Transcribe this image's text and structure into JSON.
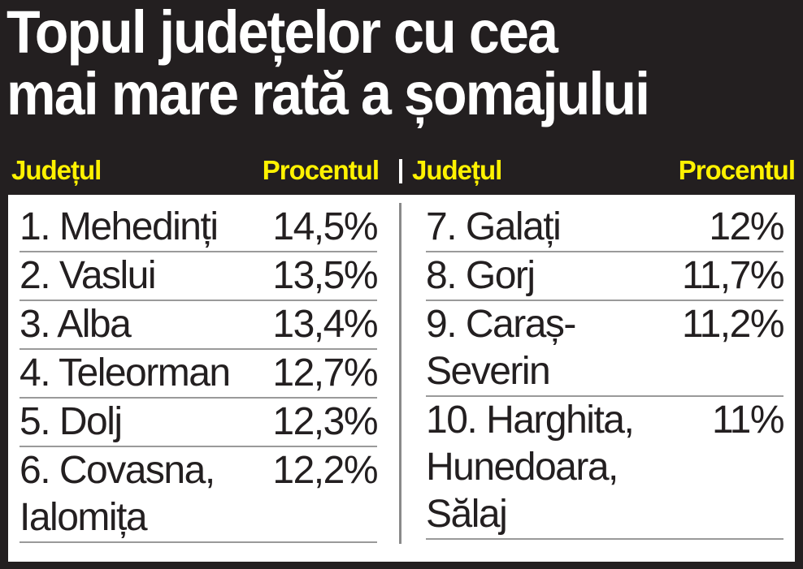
{
  "title": {
    "line1": "Topul județelor cu cea",
    "line2": "mai mare rată a șomajului"
  },
  "headers": {
    "left_county": "Județul",
    "left_percent": "Procentul",
    "separator": "|",
    "right_county": "Județul",
    "right_percent": "Procentul"
  },
  "colors": {
    "background": "#231f20",
    "header_text": "#fff200",
    "title_text": "#ffffff",
    "panel": "#ffffff",
    "row_rule": "#9a9a9a"
  },
  "chart_data": {
    "type": "table",
    "title": "Topul județelor cu cea mai mare rată a șomajului",
    "columns": [
      "Județul",
      "Procentul"
    ],
    "rows": [
      {
        "rank": 1,
        "county": "1. Mehedinți",
        "percent": "14,5%",
        "value": 14.5
      },
      {
        "rank": 2,
        "county": "2. Vaslui",
        "percent": "13,5%",
        "value": 13.5
      },
      {
        "rank": 3,
        "county": "3. Alba",
        "percent": "13,4%",
        "value": 13.4
      },
      {
        "rank": 4,
        "county": "4. Teleorman",
        "percent": "12,7%",
        "value": 12.7
      },
      {
        "rank": 5,
        "county": "5. Dolj",
        "percent": "12,3%",
        "value": 12.3
      },
      {
        "rank": 6,
        "county": "6. Covasna,\nIalomița",
        "percent": "12,2%",
        "value": 12.2
      },
      {
        "rank": 7,
        "county": "7. Galați",
        "percent": "12%",
        "value": 12.0
      },
      {
        "rank": 8,
        "county": "8. Gorj",
        "percent": "11,7%",
        "value": 11.7
      },
      {
        "rank": 9,
        "county": "9. Caraș-\nSeverin",
        "percent": "11,2%",
        "value": 11.2
      },
      {
        "rank": 10,
        "county": "10. Harghita,\nHunedoara,\nSălaj",
        "percent": "11%",
        "value": 11.0
      }
    ]
  }
}
